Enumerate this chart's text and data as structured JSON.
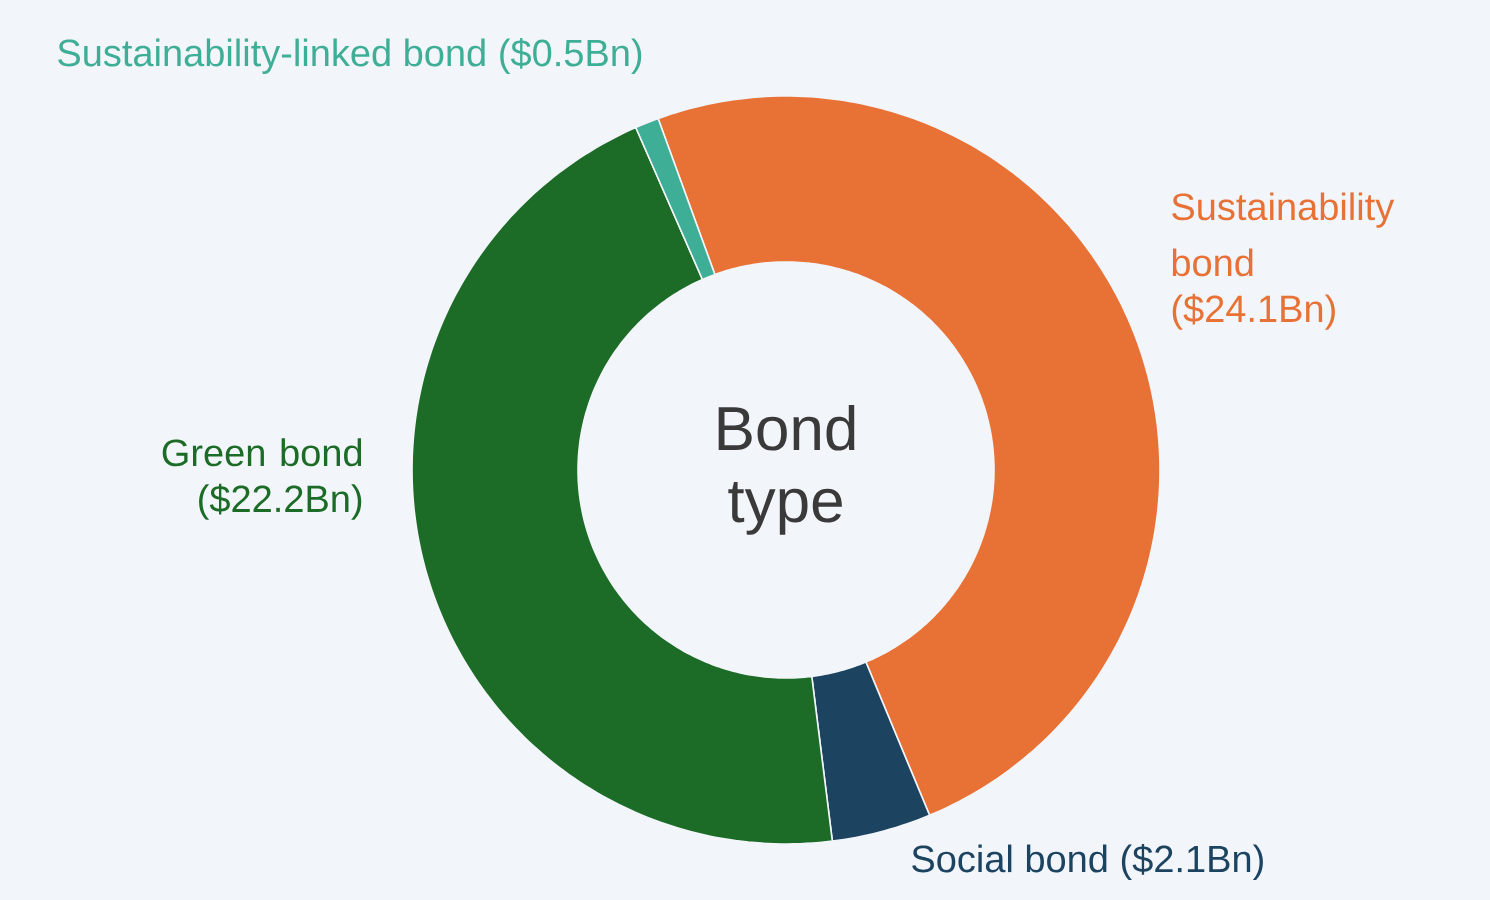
{
  "chart_data": {
    "type": "donut",
    "title": "Bond type",
    "categories": [
      "Sustainability bond",
      "Social bond",
      "Green bond",
      "Sustainability-linked bond"
    ],
    "values": [
      24.1,
      2.1,
      22.2,
      0.5
    ],
    "value_labels": [
      "($24.1Bn)",
      "($2.1Bn)",
      "($22.2Bn)",
      "($0.5Bn)"
    ],
    "colors": [
      "#e87236",
      "#1c4461",
      "#1c6b27",
      "#3fae96"
    ]
  }
}
